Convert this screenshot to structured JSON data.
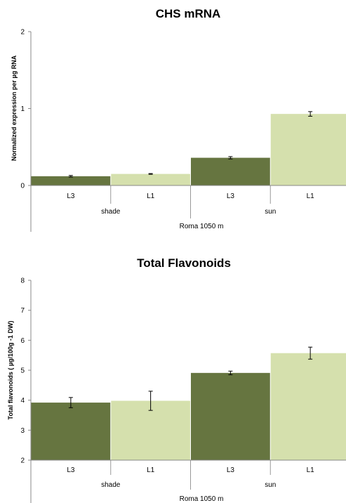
{
  "chart_data": [
    {
      "type": "bar",
      "title": "CHS mRNA",
      "ylabel": "Normalized expression per µg RNA",
      "xlabel": "",
      "ylim": [
        0,
        2
      ],
      "yticks": [
        "0",
        "1",
        "2"
      ],
      "ytick_values": [
        0,
        1,
        2
      ],
      "categories": [
        "L3",
        "L1",
        "L3",
        "L1"
      ],
      "groups": [
        "shade",
        "sun"
      ],
      "site": "Roma 1050 m",
      "values": [
        0.12,
        0.15,
        0.36,
        0.93
      ],
      "errors": [
        0.01,
        0.005,
        0.015,
        0.03
      ],
      "colors": [
        "#667540",
        "#d5e0ad",
        "#667540",
        "#d5e0ad"
      ],
      "grid": false,
      "legend": "none"
    },
    {
      "type": "bar",
      "title": "Total Flavonoids",
      "ylabel": "Total flavonoids ( µg/100g -1 DW)",
      "xlabel": "",
      "ylim": [
        2,
        8
      ],
      "yticks": [
        "2",
        "3",
        "4",
        "5",
        "6",
        "7",
        "8"
      ],
      "ytick_values": [
        2,
        3,
        4,
        5,
        6,
        7,
        8
      ],
      "categories": [
        "L3",
        "L1",
        "L3",
        "L1"
      ],
      "groups": [
        "shade",
        "sun"
      ],
      "site": "Roma 1050 m",
      "values": [
        3.92,
        3.98,
        4.91,
        5.57
      ],
      "errors": [
        0.17,
        0.32,
        0.06,
        0.2
      ],
      "colors": [
        "#667540",
        "#d5e0ad",
        "#667540",
        "#d5e0ad"
      ],
      "grid": false,
      "legend": "none"
    }
  ]
}
